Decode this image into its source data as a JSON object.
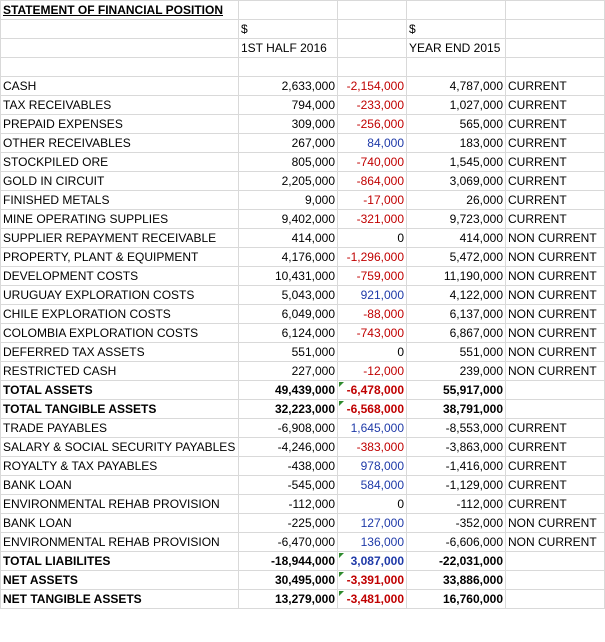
{
  "title": "STATEMENT OF FINANCIAL POSITION",
  "currency_row": {
    "col1": "$",
    "col3": "$"
  },
  "header_row": {
    "col1": "1ST HALF 2016",
    "col3": "YEAR END 2015"
  },
  "rows": [
    {
      "label": "CASH",
      "h1": "2,633,000",
      "change": "-2,154,000",
      "change_sign": "neg",
      "ye": "4,787,000",
      "class": "CURRENT",
      "bold": false
    },
    {
      "label": "TAX RECEIVABLES",
      "h1": "794,000",
      "change": "-233,000",
      "change_sign": "neg",
      "ye": "1,027,000",
      "class": "CURRENT",
      "bold": false
    },
    {
      "label": "PREPAID EXPENSES",
      "h1": "309,000",
      "change": "-256,000",
      "change_sign": "neg",
      "ye": "565,000",
      "class": "CURRENT",
      "bold": false
    },
    {
      "label": "OTHER RECEIVABLES",
      "h1": "267,000",
      "change": "84,000",
      "change_sign": "pos",
      "ye": "183,000",
      "class": "CURRENT",
      "bold": false
    },
    {
      "label": "STOCKPILED ORE",
      "h1": "805,000",
      "change": "-740,000",
      "change_sign": "neg",
      "ye": "1,545,000",
      "class": "CURRENT",
      "bold": false
    },
    {
      "label": "GOLD IN CIRCUIT",
      "h1": "2,205,000",
      "change": "-864,000",
      "change_sign": "neg",
      "ye": "3,069,000",
      "class": "CURRENT",
      "bold": false
    },
    {
      "label": "FINISHED METALS",
      "h1": "9,000",
      "change": "-17,000",
      "change_sign": "neg",
      "ye": "26,000",
      "class": "CURRENT",
      "bold": false
    },
    {
      "label": "MINE OPERATING SUPPLIES",
      "h1": "9,402,000",
      "change": "-321,000",
      "change_sign": "neg",
      "ye": "9,723,000",
      "class": "CURRENT",
      "bold": false
    },
    {
      "label": "SUPPLIER REPAYMENT RECEIVABLE",
      "h1": "414,000",
      "change": "0",
      "change_sign": "zero",
      "ye": "414,000",
      "class": "NON CURRENT",
      "bold": false
    },
    {
      "label": "PROPERTY, PLANT & EQUIPMENT",
      "h1": "4,176,000",
      "change": "-1,296,000",
      "change_sign": "neg",
      "ye": "5,472,000",
      "class": "NON CURRENT",
      "bold": false
    },
    {
      "label": "DEVELOPMENT COSTS",
      "h1": "10,431,000",
      "change": "-759,000",
      "change_sign": "neg",
      "ye": "11,190,000",
      "class": "NON CURRENT",
      "bold": false
    },
    {
      "label": "URUGUAY EXPLORATION COSTS",
      "h1": "5,043,000",
      "change": "921,000",
      "change_sign": "pos",
      "ye": "4,122,000",
      "class": "NON CURRENT",
      "bold": false
    },
    {
      "label": "CHILE EXPLORATION COSTS",
      "h1": "6,049,000",
      "change": "-88,000",
      "change_sign": "neg",
      "ye": "6,137,000",
      "class": "NON CURRENT",
      "bold": false
    },
    {
      "label": "COLOMBIA EXPLORATION COSTS",
      "h1": "6,124,000",
      "change": "-743,000",
      "change_sign": "neg",
      "ye": "6,867,000",
      "class": "NON CURRENT",
      "bold": false
    },
    {
      "label": "DEFERRED TAX ASSETS",
      "h1": "551,000",
      "change": "0",
      "change_sign": "zero",
      "ye": "551,000",
      "class": "NON CURRENT",
      "bold": false
    },
    {
      "label": "RESTRICTED CASH",
      "h1": "227,000",
      "change": "-12,000",
      "change_sign": "neg",
      "ye": "239,000",
      "class": "NON CURRENT",
      "bold": false
    },
    {
      "label": "TOTAL ASSETS",
      "h1": "49,439,000",
      "change": "-6,478,000",
      "change_sign": "neg",
      "ye": "55,917,000",
      "class": "",
      "bold": true,
      "flag": true
    },
    {
      "label": "TOTAL TANGIBLE ASSETS",
      "h1": "32,223,000",
      "change": "-6,568,000",
      "change_sign": "neg",
      "ye": "38,791,000",
      "class": "",
      "bold": true,
      "flag": true
    },
    {
      "label": "TRADE PAYABLES",
      "h1": "-6,908,000",
      "change": "1,645,000",
      "change_sign": "pos",
      "ye": "-8,553,000",
      "class": "CURRENT",
      "bold": false
    },
    {
      "label": "SALARY & SOCIAL SECURITY PAYABLES",
      "h1": "-4,246,000",
      "change": "-383,000",
      "change_sign": "neg",
      "ye": "-3,863,000",
      "class": "CURRENT",
      "bold": false
    },
    {
      "label": "ROYALTY & TAX PAYABLES",
      "h1": "-438,000",
      "change": "978,000",
      "change_sign": "pos",
      "ye": "-1,416,000",
      "class": "CURRENT",
      "bold": false
    },
    {
      "label": "BANK LOAN",
      "h1": "-545,000",
      "change": "584,000",
      "change_sign": "pos",
      "ye": "-1,129,000",
      "class": "CURRENT",
      "bold": false
    },
    {
      "label": "ENVIRONMENTAL REHAB PROVISION",
      "h1": "-112,000",
      "change": "0",
      "change_sign": "zero",
      "ye": "-112,000",
      "class": "CURRENT",
      "bold": false
    },
    {
      "label": "BANK LOAN",
      "h1": "-225,000",
      "change": "127,000",
      "change_sign": "pos",
      "ye": "-352,000",
      "class": "NON CURRENT",
      "bold": false
    },
    {
      "label": "ENVIRONMENTAL REHAB PROVISION",
      "h1": "-6,470,000",
      "change": "136,000",
      "change_sign": "pos",
      "ye": "-6,606,000",
      "class": "NON CURRENT",
      "bold": false
    },
    {
      "label": "TOTAL LIABILITES",
      "h1": "-18,944,000",
      "change": "3,087,000",
      "change_sign": "pos",
      "ye": "-22,031,000",
      "class": "",
      "bold": true,
      "flag": true
    },
    {
      "label": "NET ASSETS",
      "h1": "30,495,000",
      "change": "-3,391,000",
      "change_sign": "neg",
      "ye": "33,886,000",
      "class": "",
      "bold": true,
      "flag": true
    },
    {
      "label": "NET TANGIBLE ASSETS",
      "h1": "13,279,000",
      "change": "-3,481,000",
      "change_sign": "neg",
      "ye": "16,760,000",
      "class": "",
      "bold": true,
      "flag": true
    }
  ],
  "colors": {
    "negative": "#c00000",
    "positive": "#1f3aa8",
    "gridline": "#d9d9d9",
    "error_flag": "#2e8b2e"
  }
}
